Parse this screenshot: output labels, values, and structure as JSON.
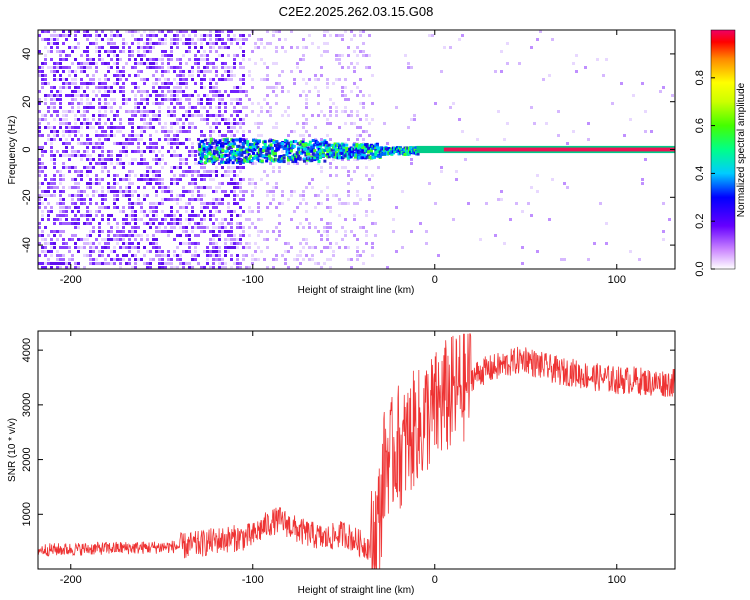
{
  "title": "C2E2.2025.262.03.15.G08",
  "chart_data": [
    {
      "type": "heatmap",
      "title": "",
      "xlabel": "Height of straight line (km)",
      "ylabel": "Frequency (Hz)",
      "xlim": [
        -218,
        132
      ],
      "ylim": [
        -50,
        50
      ],
      "xticks": [
        -200,
        -100,
        0,
        100
      ],
      "yticks": [
        -40,
        -20,
        0,
        20,
        40
      ],
      "colorbar": {
        "label": "Normalized spectral amplitude",
        "range": [
          0,
          1
        ],
        "ticks": [
          0.0,
          0.2,
          0.4,
          0.6,
          0.8
        ]
      },
      "features": {
        "noise_region_x": [
          -218,
          -105
        ],
        "scatter_region_x": [
          -105,
          -35
        ],
        "signal_band_center_hz": 0,
        "signal_band_start_x": -10,
        "strong_carrier_from_x": 5
      }
    },
    {
      "type": "line",
      "title": "",
      "xlabel": "Height of straight line (km)",
      "ylabel": "SNR (10 * v/v)",
      "xlim": [
        -218,
        132
      ],
      "ylim": [
        0,
        4350
      ],
      "xticks": [
        -200,
        -100,
        0,
        100
      ],
      "yticks": [
        1000,
        2000,
        3000,
        4000
      ],
      "series": [
        {
          "color": "#ee3333",
          "x": [
            -218,
            -200,
            -180,
            -160,
            -140,
            -130,
            -120,
            -110,
            -100,
            -95,
            -90,
            -85,
            -80,
            -75,
            -70,
            -65,
            -60,
            -55,
            -50,
            -45,
            -40,
            -35,
            -30,
            -28,
            -26,
            -24,
            -22,
            -20,
            -18,
            -16,
            -14,
            -12,
            -10,
            -8,
            -5,
            0,
            5,
            10,
            15,
            20,
            25,
            30,
            35,
            40,
            45,
            50,
            55,
            60,
            65,
            70,
            75,
            80,
            90,
            100,
            110,
            120,
            132
          ],
          "values": [
            350,
            360,
            380,
            390,
            410,
            450,
            520,
            560,
            600,
            750,
            850,
            900,
            800,
            700,
            650,
            600,
            550,
            600,
            650,
            550,
            450,
            400,
            1000,
            1800,
            2100,
            2000,
            2200,
            2300,
            2100,
            2300,
            2400,
            2500,
            2700,
            2500,
            2800,
            2900,
            3100,
            3200,
            3350,
            3500,
            3600,
            3650,
            3700,
            3750,
            3800,
            3850,
            3750,
            3700,
            3650,
            3600,
            3600,
            3550,
            3500,
            3450,
            3450,
            3400,
            3400
          ]
        }
      ]
    }
  ]
}
